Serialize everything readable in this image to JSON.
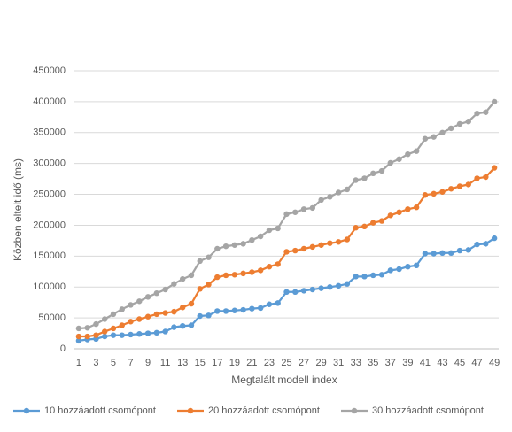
{
  "chart_data": {
    "type": "line",
    "x_label": "Megtalált modell index",
    "y_label": "Közben eltelt idő (ms)",
    "categories": [
      1,
      null,
      3,
      null,
      5,
      null,
      7,
      null,
      9,
      null,
      11,
      null,
      13,
      null,
      15,
      null,
      17,
      null,
      19,
      null,
      21,
      null,
      23,
      null,
      25,
      null,
      27,
      null,
      29,
      null,
      31,
      null,
      33,
      null,
      35,
      null,
      37,
      null,
      39,
      null,
      41,
      null,
      43,
      null,
      45,
      null,
      47,
      null,
      49
    ],
    "ylim": [
      0,
      450000
    ],
    "yticks": [
      0,
      50000,
      100000,
      150000,
      200000,
      250000,
      300000,
      350000,
      400000,
      450000
    ],
    "grid": true,
    "legend": "bottom",
    "series": [
      {
        "name": "10 hozzáadott csomópont",
        "color": "#5b9bd5",
        "values": [
          13000,
          15000,
          16000,
          20000,
          22000,
          22000,
          23000,
          24000,
          25000,
          26000,
          28000,
          35000,
          37000,
          38000,
          53000,
          54000,
          61000,
          61000,
          62000,
          63000,
          65000,
          66000,
          72000,
          74000,
          92000,
          92000,
          94000,
          96000,
          98000,
          100000,
          102000,
          105000,
          117000,
          117000,
          119000,
          120000,
          127000,
          129000,
          133000,
          135000,
          154000,
          154000,
          155000,
          155000,
          159000,
          160000,
          169000,
          170000,
          179000
        ]
      },
      {
        "name": "20 hozzáadott csomópont",
        "color": "#ed7d31",
        "values": [
          20000,
          20000,
          22000,
          28000,
          33000,
          38000,
          44000,
          48000,
          52000,
          56000,
          58000,
          60000,
          67000,
          73000,
          97000,
          104000,
          116000,
          119000,
          120000,
          122000,
          124000,
          127000,
          133000,
          137000,
          157000,
          159000,
          162000,
          165000,
          168000,
          171000,
          173000,
          177000,
          196000,
          198000,
          204000,
          207000,
          216000,
          221000,
          226000,
          229000,
          249000,
          251000,
          254000,
          259000,
          263000,
          266000,
          276000,
          278000,
          293000
        ]
      },
      {
        "name": "30 hozzáadott csomópont",
        "color": "#a5a5a5",
        "values": [
          33000,
          34000,
          40000,
          48000,
          56000,
          64000,
          71000,
          77000,
          84000,
          90000,
          96000,
          105000,
          113000,
          119000,
          142000,
          148000,
          162000,
          166000,
          168000,
          170000,
          176000,
          182000,
          192000,
          195000,
          218000,
          221000,
          226000,
          228000,
          241000,
          246000,
          253000,
          258000,
          273000,
          276000,
          284000,
          288000,
          301000,
          307000,
          315000,
          320000,
          340000,
          343000,
          350000,
          357000,
          364000,
          368000,
          381000,
          383000,
          400000
        ]
      }
    ]
  }
}
